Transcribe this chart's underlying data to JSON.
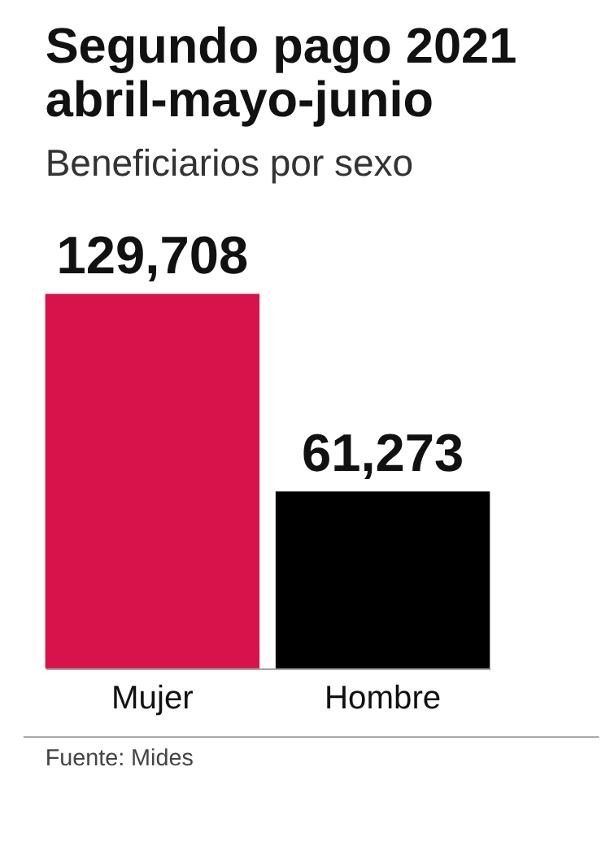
{
  "chart_data": {
    "type": "bar",
    "title": "Segundo pago 2021\nabril-mayo-junio",
    "subtitle": "Beneficiarios por sexo",
    "categories": [
      "Mujer",
      "Hombre"
    ],
    "values": [
      129708,
      61273
    ],
    "value_labels": [
      "129,708",
      "61,273"
    ],
    "colors": [
      "#d8124b",
      "#000000"
    ],
    "tick_labels": "x",
    "annotations": [
      "Fuente: Mides"
    ]
  }
}
